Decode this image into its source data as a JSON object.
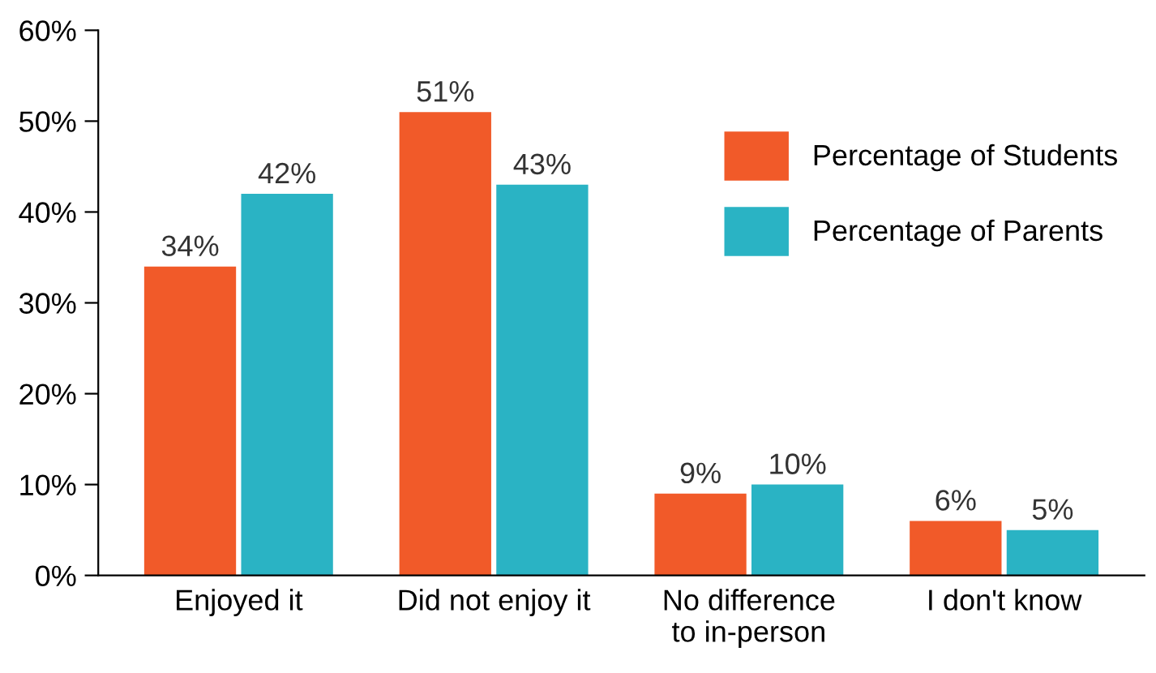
{
  "chart_data": {
    "type": "bar",
    "categories": [
      "Enjoyed it",
      "Did not enjoy it",
      "No difference\nto in-person",
      "I don't know"
    ],
    "series": [
      {
        "name": "Percentage of Students",
        "color": "#f15a29",
        "values": [
          34,
          51,
          9,
          6
        ],
        "value_labels": [
          "34%",
          "51%",
          "9%",
          "6%"
        ]
      },
      {
        "name": "Percentage of Parents",
        "color": "#2ab3c4",
        "values": [
          42,
          43,
          10,
          5
        ],
        "value_labels": [
          "42%",
          "43%",
          "10%",
          "5%"
        ]
      }
    ],
    "ylim": [
      0,
      60
    ],
    "yticks": [
      {
        "value": 0,
        "label": "0%"
      },
      {
        "value": 10,
        "label": "10%"
      },
      {
        "value": 20,
        "label": "20%"
      },
      {
        "value": 30,
        "label": "30%"
      },
      {
        "value": 40,
        "label": "40%"
      },
      {
        "value": 50,
        "label": "50%"
      },
      {
        "value": 60,
        "label": "60%"
      }
    ],
    "grid": false,
    "legend": "right"
  }
}
